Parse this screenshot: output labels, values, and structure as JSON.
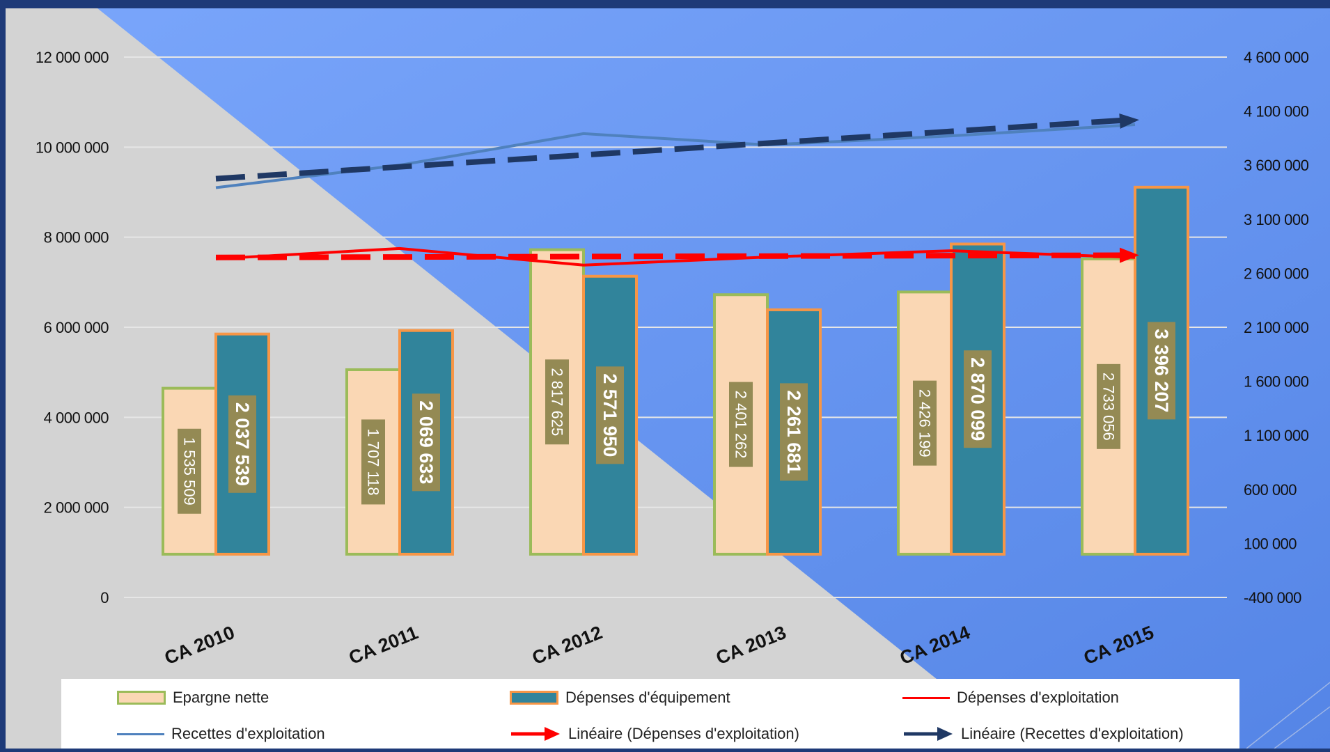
{
  "chart_data": {
    "type": "bar",
    "categories": [
      "CA 2010",
      "CA 2011",
      "CA 2012",
      "CA 2013",
      "CA 2014",
      "CA 2015"
    ],
    "series": [
      {
        "name": "Epargne nette",
        "axis": "right",
        "kind": "bar",
        "values": [
          1535509,
          1707118,
          2817625,
          2401262,
          2426199,
          2733056
        ],
        "fill": "#fad7b4",
        "stroke": "#9bbb59"
      },
      {
        "name": "Dépenses d'équipement",
        "axis": "right",
        "kind": "bar",
        "values": [
          2037539,
          2069633,
          2571950,
          2261681,
          2870099,
          3396207
        ],
        "fill": "#31849b",
        "stroke": "#f79646"
      },
      {
        "name": "Dépenses d'exploitation",
        "axis": "left",
        "kind": "line",
        "values": [
          7520000,
          7750000,
          7380000,
          7560000,
          7700000,
          7550000
        ],
        "color": "#ff0000"
      },
      {
        "name": "Recettes d'exploitation",
        "axis": "left",
        "kind": "line",
        "values": [
          9100000,
          9600000,
          10300000,
          10050000,
          10250000,
          10500000
        ],
        "color": "#4f81bd"
      }
    ],
    "trendlines": [
      {
        "name": "Linéaire (Dépenses d'exploitation)",
        "of": "Dépenses d'exploitation",
        "axis": "left",
        "start": 7550000,
        "end": 7600000,
        "color": "#ff0000"
      },
      {
        "name": "Linéaire (Recettes d'exploitation)",
        "of": "Recettes d'exploitation",
        "axis": "left",
        "start": 9300000,
        "end": 10600000,
        "color": "#1f3864"
      }
    ],
    "left_axis": {
      "ylim": [
        0,
        12000000
      ],
      "ticks": [
        0,
        2000000,
        4000000,
        6000000,
        8000000,
        10000000,
        12000000
      ],
      "tick_labels": [
        "0",
        "2 000 000",
        "4 000 000",
        "6 000 000",
        "8 000 000",
        "10 000 000",
        "12 000 000"
      ]
    },
    "right_axis": {
      "ylim": [
        -400000,
        4600000
      ],
      "ticks": [
        -400000,
        100000,
        600000,
        1100000,
        1600000,
        2100000,
        2600000,
        3100000,
        3600000,
        4100000,
        4600000
      ],
      "tick_labels": [
        "-400 000",
        "100 000",
        "600 000",
        "1 100 000",
        "1 600 000",
        "2 100 000",
        "2 600 000",
        "3 100 000",
        "3 600 000",
        "4 100 000",
        "4 600 000"
      ]
    },
    "data_labels": {
      "Epargne nette": [
        "1 535 509",
        "1 707 118",
        "2 817 625",
        "2 401 262",
        "2 426 199",
        "2 733 056"
      ],
      "Dépenses d'équipement": [
        "2 037 539",
        "2 069 633",
        "2 571 950",
        "2 261 681",
        "2 870 099",
        "3 396 207"
      ]
    },
    "legend": {
      "position": "bottom",
      "items": [
        "Epargne nette",
        "Dépenses d'équipement",
        "Dépenses d'exploitation",
        "Recettes d'exploitation",
        "Linéaire (Dépenses d'exploitation)",
        "Linéaire (Recettes d'exploitation)"
      ]
    },
    "grid": true,
    "title": "",
    "xlabel": "",
    "ylabel": ""
  },
  "theme": {
    "frame_color": "#1e3a78",
    "plot_blue": "#7aa4f6",
    "plot_grey": "#d3d3d3",
    "label_box": "#948a54",
    "gridline": "#e6e6e6"
  }
}
